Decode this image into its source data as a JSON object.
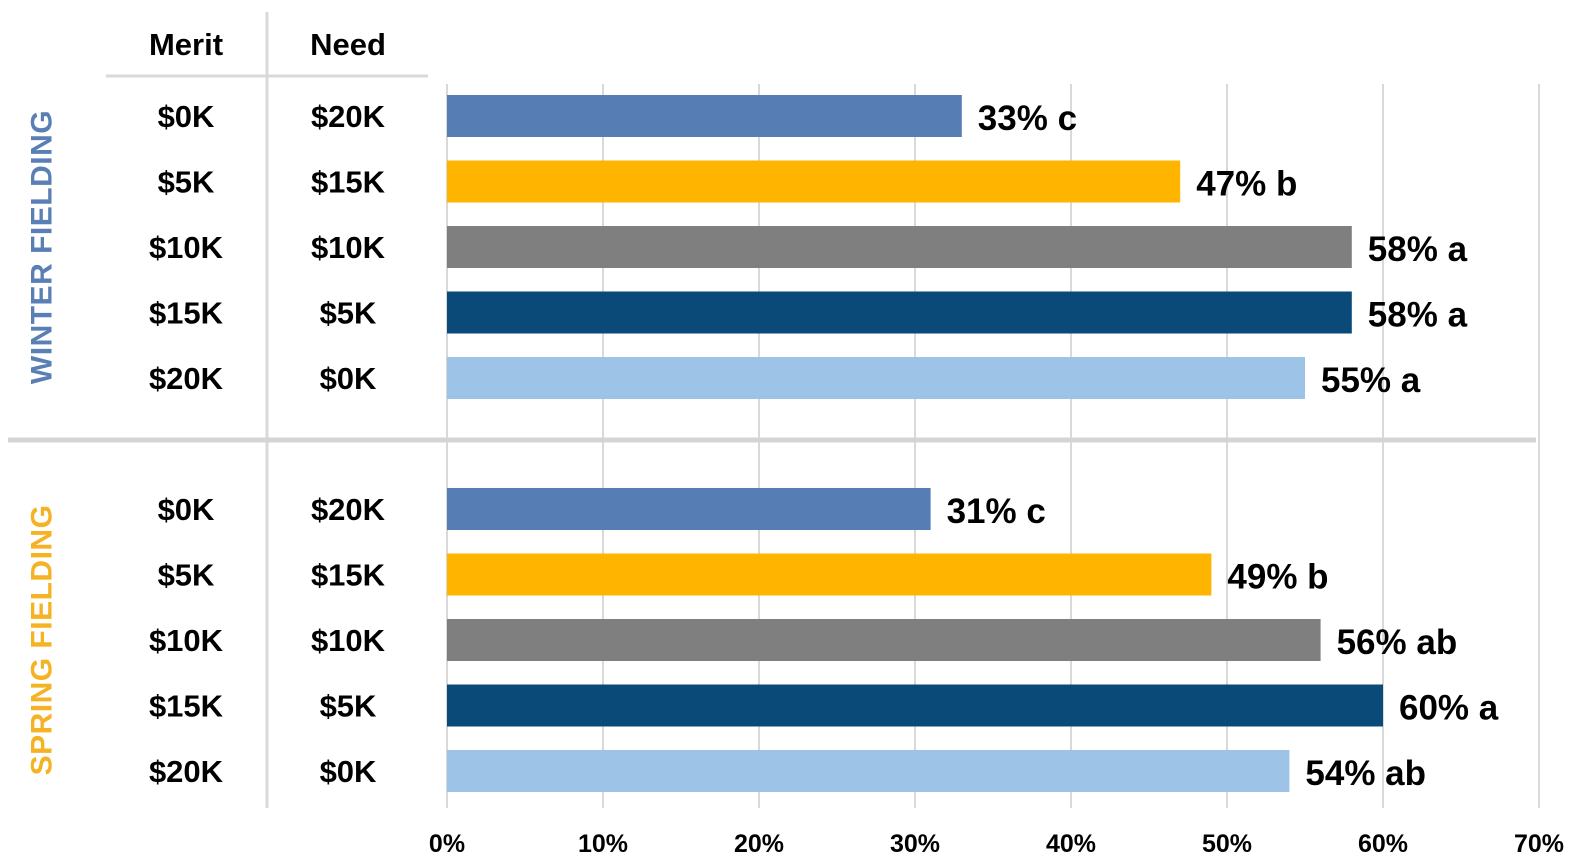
{
  "chart_data": {
    "type": "bar",
    "orientation": "horizontal",
    "headers": {
      "merit": "Merit",
      "need": "Need"
    },
    "x_ticks": [
      "0%",
      "10%",
      "20%",
      "30%",
      "40%",
      "50%",
      "60%",
      "70%"
    ],
    "xlim": [
      0,
      70
    ],
    "grid": true,
    "groups": [
      {
        "name": "WINTER FIELDING",
        "color": "#5a7fb4",
        "rows": [
          {
            "merit": "$0K",
            "need": "$20K",
            "value": 33,
            "label": "33% c",
            "color": "#567eb4"
          },
          {
            "merit": "$5K",
            "need": "$15K",
            "value": 47,
            "label": "47% b",
            "color": "#ffb400"
          },
          {
            "merit": "$10K",
            "need": "$10K",
            "value": 58,
            "label": "58% a",
            "color": "#7f7f7f"
          },
          {
            "merit": "$15K",
            "need": "$5K",
            "value": 58,
            "label": "58% a",
            "color": "#0a4a78"
          },
          {
            "merit": "$20K",
            "need": "$0K",
            "value": 55,
            "label": "55% a",
            "color": "#9dc3e6"
          }
        ]
      },
      {
        "name": "SPRING FIELDING",
        "color": "#f5b324",
        "rows": [
          {
            "merit": "$0K",
            "need": "$20K",
            "value": 31,
            "label": "31% c",
            "color": "#567eb4"
          },
          {
            "merit": "$5K",
            "need": "$15K",
            "value": 49,
            "label": "49% b",
            "color": "#ffb400"
          },
          {
            "merit": "$10K",
            "need": "$10K",
            "value": 56,
            "label": "56% ab",
            "color": "#7f7f7f"
          },
          {
            "merit": "$15K",
            "need": "$5K",
            "value": 60,
            "label": "60% a",
            "color": "#0a4a78"
          },
          {
            "merit": "$20K",
            "need": "$0K",
            "value": 54,
            "label": "54% ab",
            "color": "#9dc3e6"
          }
        ]
      }
    ]
  }
}
